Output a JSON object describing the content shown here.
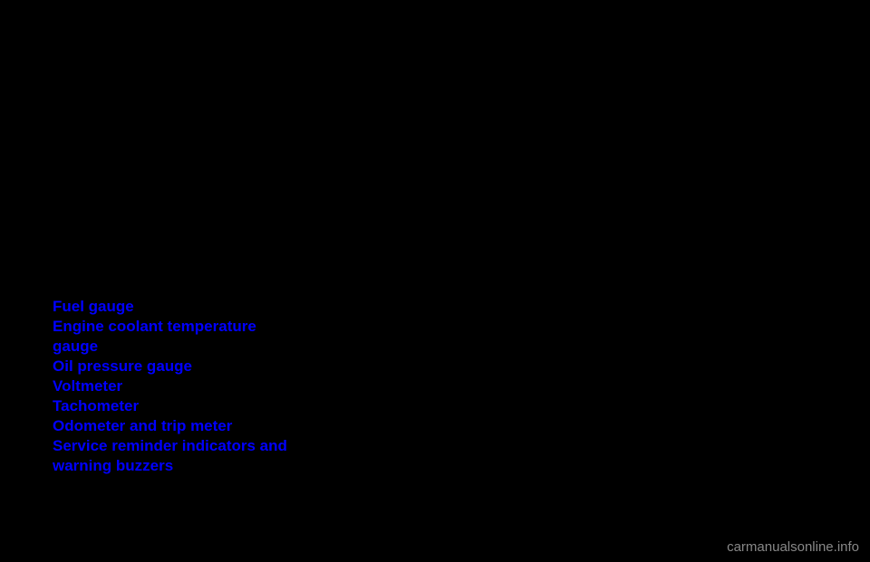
{
  "list": {
    "items": [
      "Fuel gauge",
      "Engine coolant temperature gauge",
      "Oil pressure gauge",
      "Voltmeter",
      "Tachometer",
      "Odometer and trip meter",
      "Service reminder indicators and warning buzzers"
    ]
  },
  "watermark": "carmanualsonline.info",
  "colors": {
    "background": "#000000",
    "link_text": "#0000ff",
    "watermark_text": "#888888"
  },
  "typography": {
    "item_fontsize": 17,
    "item_fontweight": "bold",
    "line_height": 22,
    "watermark_fontsize": 15
  }
}
